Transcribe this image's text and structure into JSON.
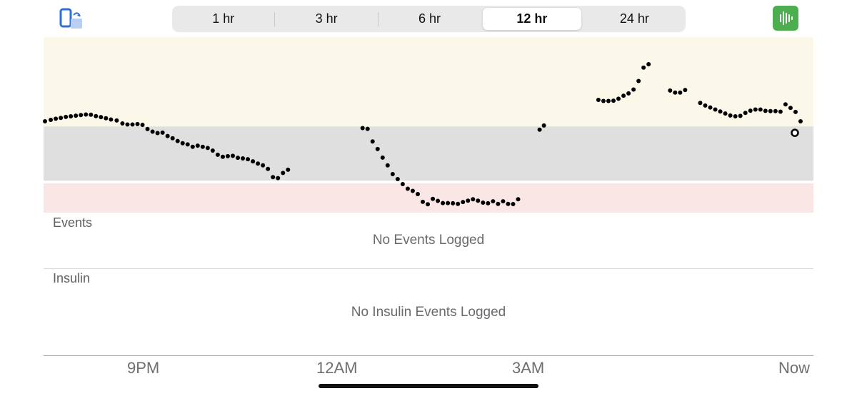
{
  "toolbar": {
    "rotate_icon": "rotate-screen-icon",
    "sound_icon": "sound-waveform-icon",
    "accent_color": "#4cae4f"
  },
  "time_ranges": [
    {
      "label": "1 hr",
      "selected": false
    },
    {
      "label": "3 hr",
      "selected": false
    },
    {
      "label": "6 hr",
      "selected": false
    },
    {
      "label": "12 hr",
      "selected": true
    },
    {
      "label": "24 hr",
      "selected": false
    }
  ],
  "events": {
    "title": "Events",
    "empty_text": "No Events Logged"
  },
  "insulin": {
    "title": "Insulin",
    "empty_text": "No Insulin Events Logged"
  },
  "x_axis": {
    "labels": [
      "9PM",
      "12AM",
      "3AM",
      "Now"
    ]
  },
  "chart_data": {
    "type": "scatter",
    "zone_colors": {
      "high": "#fbf8ea",
      "target": "#dfdfdf",
      "low": "#fbe6e6"
    },
    "point_color": "#000000",
    "series": [
      {
        "values": [
          [
            0.0,
            0.29
          ],
          [
            0.08,
            0.325
          ],
          [
            0.15,
            0.355
          ],
          [
            0.22,
            0.375
          ],
          [
            0.29,
            0.4
          ],
          [
            0.36,
            0.415
          ],
          [
            0.43,
            0.43
          ],
          [
            0.5,
            0.445
          ],
          [
            0.57,
            0.46
          ],
          [
            0.64,
            0.455
          ],
          [
            0.71,
            0.42
          ],
          [
            0.78,
            0.395
          ],
          [
            0.85,
            0.365
          ],
          [
            0.92,
            0.335
          ],
          [
            1.0,
            0.31
          ],
          [
            1.08,
            0.235
          ],
          [
            1.15,
            0.21
          ],
          [
            1.22,
            0.21
          ],
          [
            1.29,
            0.22
          ],
          [
            1.36,
            0.2
          ],
          [
            1.43,
            0.095
          ],
          [
            1.5,
            0.03
          ],
          [
            1.57,
            -0.005
          ],
          [
            1.64,
            0.005
          ],
          [
            1.71,
            -0.08
          ],
          [
            1.78,
            -0.135
          ],
          [
            1.85,
            -0.205
          ],
          [
            1.92,
            -0.26
          ],
          [
            1.99,
            -0.29
          ],
          [
            2.06,
            -0.35
          ],
          [
            2.13,
            -0.32
          ],
          [
            2.2,
            -0.35
          ],
          [
            2.27,
            -0.38
          ],
          [
            2.34,
            -0.445
          ],
          [
            2.41,
            -0.55
          ],
          [
            2.48,
            -0.6
          ],
          [
            2.55,
            -0.585
          ],
          [
            2.62,
            -0.575
          ],
          [
            2.69,
            -0.625
          ],
          [
            2.76,
            -0.64
          ],
          [
            2.83,
            -0.66
          ],
          [
            2.9,
            -0.715
          ],
          [
            2.97,
            -0.77
          ],
          [
            3.04,
            -0.815
          ],
          [
            3.11,
            -0.905
          ],
          [
            3.18,
            -1.11
          ],
          [
            3.25,
            -1.135
          ],
          [
            3.32,
            -1.005
          ],
          [
            3.39,
            -0.925
          ],
          [
            4.43,
            0.12
          ],
          [
            4.5,
            0.1
          ],
          [
            4.57,
            -0.215
          ],
          [
            4.64,
            -0.405
          ],
          [
            4.71,
            -0.62
          ],
          [
            4.78,
            -0.815
          ],
          [
            4.85,
            -1.035
          ],
          [
            4.92,
            -1.16
          ],
          [
            4.99,
            -1.285
          ],
          [
            5.06,
            -1.4
          ],
          [
            5.13,
            -1.455
          ],
          [
            5.2,
            -1.535
          ],
          [
            5.27,
            -1.73
          ],
          [
            5.34,
            -1.79
          ],
          [
            5.41,
            -1.655
          ],
          [
            5.48,
            -1.705
          ],
          [
            5.55,
            -1.76
          ],
          [
            5.62,
            -1.76
          ],
          [
            5.69,
            -1.765
          ],
          [
            5.76,
            -1.78
          ],
          [
            5.83,
            -1.735
          ],
          [
            5.9,
            -1.7
          ],
          [
            5.97,
            -1.665
          ],
          [
            6.04,
            -1.7
          ],
          [
            6.11,
            -1.75
          ],
          [
            6.18,
            -1.765
          ],
          [
            6.25,
            -1.715
          ],
          [
            6.32,
            -1.78
          ],
          [
            6.39,
            -1.715
          ],
          [
            6.46,
            -1.78
          ],
          [
            6.53,
            -1.785
          ],
          [
            6.6,
            -1.665
          ],
          [
            6.9,
            0.08
          ],
          [
            6.96,
            0.185
          ],
          [
            7.72,
            0.825
          ],
          [
            7.79,
            0.8
          ],
          [
            7.86,
            0.8
          ],
          [
            7.93,
            0.805
          ],
          [
            8.0,
            0.855
          ],
          [
            8.07,
            0.93
          ],
          [
            8.14,
            0.99
          ],
          [
            8.21,
            1.085
          ],
          [
            8.28,
            1.3
          ],
          [
            8.35,
            1.635
          ],
          [
            8.42,
            1.72
          ],
          [
            8.72,
            1.06
          ],
          [
            8.79,
            1.01
          ],
          [
            8.86,
            1.01
          ],
          [
            8.93,
            1.075
          ],
          [
            9.14,
            0.75
          ],
          [
            9.21,
            0.685
          ],
          [
            9.28,
            0.635
          ],
          [
            9.35,
            0.585
          ],
          [
            9.42,
            0.535
          ],
          [
            9.49,
            0.485
          ],
          [
            9.56,
            0.435
          ],
          [
            9.63,
            0.415
          ],
          [
            9.7,
            0.425
          ],
          [
            9.77,
            0.5
          ],
          [
            9.84,
            0.555
          ],
          [
            9.91,
            0.585
          ],
          [
            9.98,
            0.585
          ],
          [
            10.05,
            0.55
          ],
          [
            10.12,
            0.545
          ],
          [
            10.19,
            0.545
          ],
          [
            10.26,
            0.53
          ],
          [
            10.33,
            0.715
          ],
          [
            10.4,
            0.625
          ],
          [
            10.47,
            0.525
          ],
          [
            10.54,
            0.29
          ]
        ]
      }
    ],
    "current_value": [
      10.6,
      0.0
    ],
    "thresholds": {
      "high": 0.16,
      "low": -1.27
    },
    "xlim": [
      0,
      10.6
    ],
    "ylim": [
      -2.0,
      2.4
    ],
    "xticks": [
      {
        "x": 1.3,
        "label": "9PM"
      },
      {
        "x": 3.9,
        "label": "12AM"
      },
      {
        "x": 6.5,
        "label": "3AM"
      },
      {
        "x": 10.6,
        "label": "Now"
      }
    ]
  }
}
